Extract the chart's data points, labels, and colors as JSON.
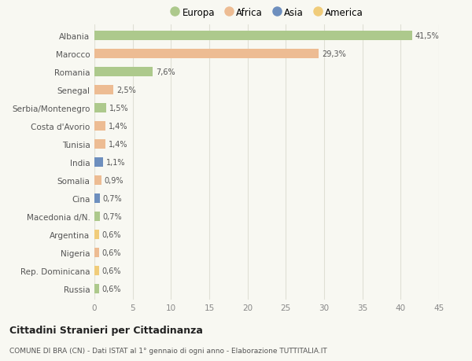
{
  "categories": [
    "Albania",
    "Marocco",
    "Romania",
    "Senegal",
    "Serbia/Montenegro",
    "Costa d'Avorio",
    "Tunisia",
    "India",
    "Somalia",
    "Cina",
    "Macedonia d/N.",
    "Argentina",
    "Nigeria",
    "Rep. Dominicana",
    "Russia"
  ],
  "values": [
    41.5,
    29.3,
    7.6,
    2.5,
    1.5,
    1.4,
    1.4,
    1.1,
    0.9,
    0.7,
    0.7,
    0.6,
    0.6,
    0.6,
    0.6
  ],
  "labels": [
    "41,5%",
    "29,3%",
    "7,6%",
    "2,5%",
    "1,5%",
    "1,4%",
    "1,4%",
    "1,1%",
    "0,9%",
    "0,7%",
    "0,7%",
    "0,6%",
    "0,6%",
    "0,6%",
    "0,6%"
  ],
  "colors": [
    "#adc98c",
    "#edbc93",
    "#adc98c",
    "#edbc93",
    "#adc98c",
    "#edbc93",
    "#edbc93",
    "#6e8fbe",
    "#edbc93",
    "#6e8fbe",
    "#adc98c",
    "#f0cc7a",
    "#edbc93",
    "#f0cc7a",
    "#adc98c"
  ],
  "legend_labels": [
    "Europa",
    "Africa",
    "Asia",
    "America"
  ],
  "legend_colors": [
    "#adc98c",
    "#edbc93",
    "#6e8fbe",
    "#f0cc7a"
  ],
  "title": "Cittadini Stranieri per Cittadinanza",
  "subtitle": "COMUNE DI BRA (CN) - Dati ISTAT al 1° gennaio di ogni anno - Elaborazione TUTTITALIA.IT",
  "xlim": [
    0,
    45
  ],
  "xticks": [
    0,
    5,
    10,
    15,
    20,
    25,
    30,
    35,
    40,
    45
  ],
  "bg_color": "#f8f8f2",
  "grid_color": "#e0e0d5",
  "bar_height": 0.55
}
